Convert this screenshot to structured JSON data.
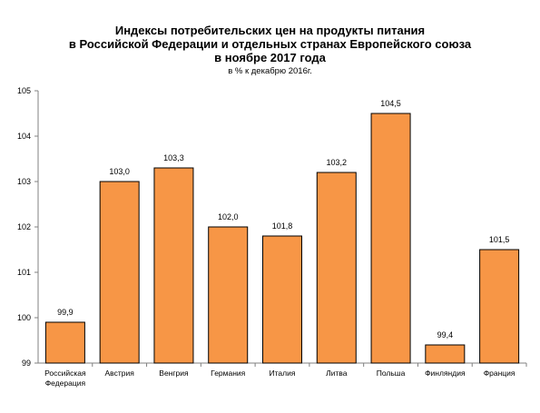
{
  "chart_data": {
    "type": "bar",
    "title_lines": [
      "Индексы потребительских цен на продукты питания",
      "в Российской Федерации и отдельных странах Европейского союза",
      "в ноябре 2017 года"
    ],
    "subtitle": "в % к декабрю 2016г.",
    "categories": [
      [
        "Российская",
        "Федерация"
      ],
      [
        "Австрия"
      ],
      [
        "Венгрия"
      ],
      [
        "Германия"
      ],
      [
        "Италия"
      ],
      [
        "Литва"
      ],
      [
        "Польша"
      ],
      [
        "Финляндия"
      ],
      [
        "Франция"
      ]
    ],
    "values": [
      99.9,
      103.0,
      103.3,
      102.0,
      101.8,
      103.2,
      104.5,
      99.4,
      101.5
    ],
    "value_labels": [
      "99,9",
      "103,0",
      "103,3",
      "102,0",
      "101,8",
      "103,2",
      "104,5",
      "99,4",
      "101,5"
    ],
    "ylim": [
      99,
      105
    ],
    "yticks": [
      99,
      100,
      101,
      102,
      103,
      104,
      105
    ],
    "bar_color": "#f79646",
    "grid": false
  }
}
